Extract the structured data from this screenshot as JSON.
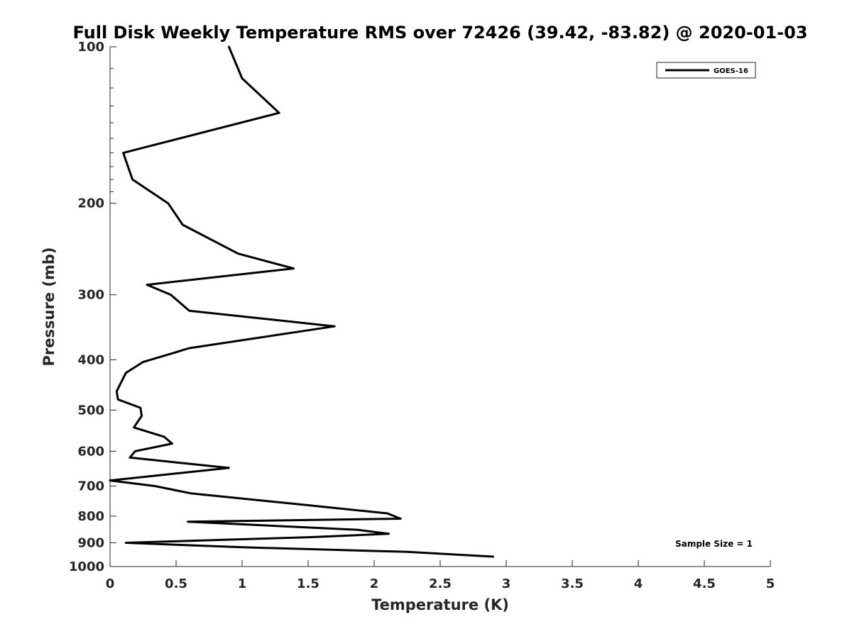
{
  "chart_data": {
    "type": "line",
    "title": "Full Disk Weekly Temperature RMS over 72426 (39.42, -83.82) @ 2020-01-03",
    "xlabel": "Temperature (K)",
    "ylabel": "Pressure (mb)",
    "xlim": [
      0,
      5
    ],
    "ylim": [
      100,
      1000
    ],
    "y_scale": "log",
    "y_direction": "reversed",
    "x_ticks": [
      "0",
      "0.5",
      "1",
      "1.5",
      "2",
      "2.5",
      "3",
      "3.5",
      "4",
      "4.5",
      "5"
    ],
    "y_ticks": [
      "100",
      "200",
      "300",
      "400",
      "500",
      "600",
      "700",
      "800",
      "900",
      "1000"
    ],
    "grid": false,
    "legend_position": "top-right",
    "annotation": "Sample Size = 1",
    "series": [
      {
        "name": "GOES-16",
        "color": "#000000",
        "points": [
          [
            0.9,
            100
          ],
          [
            1.0,
            115
          ],
          [
            1.28,
            134
          ],
          [
            0.1,
            160
          ],
          [
            0.17,
            180
          ],
          [
            0.44,
            200
          ],
          [
            0.55,
            220
          ],
          [
            0.97,
            250
          ],
          [
            1.39,
            267
          ],
          [
            0.28,
            287
          ],
          [
            0.46,
            300
          ],
          [
            0.6,
            322
          ],
          [
            1.7,
            345
          ],
          [
            0.6,
            380
          ],
          [
            0.41,
            393
          ],
          [
            0.25,
            404
          ],
          [
            0.12,
            424
          ],
          [
            0.05,
            460
          ],
          [
            0.06,
            477
          ],
          [
            0.23,
            495
          ],
          [
            0.24,
            513
          ],
          [
            0.18,
            540
          ],
          [
            0.41,
            563
          ],
          [
            0.47,
            580
          ],
          [
            0.19,
            600
          ],
          [
            0.15,
            617
          ],
          [
            0.9,
            646
          ],
          [
            0.0,
            683
          ],
          [
            0.34,
            700
          ],
          [
            0.61,
            723
          ],
          [
            1.5,
            762
          ],
          [
            2.1,
            790
          ],
          [
            2.2,
            809
          ],
          [
            0.59,
            820
          ],
          [
            1.88,
            850
          ],
          [
            2.11,
            865
          ],
          [
            1.51,
            878
          ],
          [
            0.12,
            900
          ],
          [
            1.0,
            918
          ],
          [
            2.25,
            937
          ],
          [
            2.9,
            957
          ]
        ]
      }
    ]
  }
}
